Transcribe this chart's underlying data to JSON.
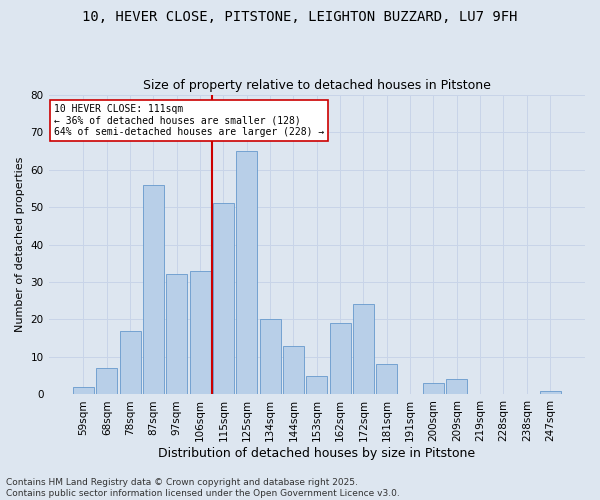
{
  "title1": "10, HEVER CLOSE, PITSTONE, LEIGHTON BUZZARD, LU7 9FH",
  "title2": "Size of property relative to detached houses in Pitstone",
  "xlabel": "Distribution of detached houses by size in Pitstone",
  "ylabel": "Number of detached properties",
  "categories": [
    "59sqm",
    "68sqm",
    "78sqm",
    "87sqm",
    "97sqm",
    "106sqm",
    "115sqm",
    "125sqm",
    "134sqm",
    "144sqm",
    "153sqm",
    "162sqm",
    "172sqm",
    "181sqm",
    "191sqm",
    "200sqm",
    "209sqm",
    "219sqm",
    "228sqm",
    "238sqm",
    "247sqm"
  ],
  "values": [
    2,
    7,
    17,
    56,
    32,
    33,
    51,
    65,
    20,
    13,
    5,
    19,
    24,
    8,
    0,
    3,
    4,
    0,
    0,
    0,
    1
  ],
  "bar_color": "#b8cfe8",
  "bar_edge_color": "#6699cc",
  "vline_color": "#cc0000",
  "annotation_line1": "10 HEVER CLOSE: 111sqm",
  "annotation_line2": "← 36% of detached houses are smaller (128)",
  "annotation_line3": "64% of semi-detached houses are larger (228) →",
  "annotation_box_color": "#ffffff",
  "annotation_box_edge": "#cc0000",
  "ylim": [
    0,
    80
  ],
  "yticks": [
    0,
    10,
    20,
    30,
    40,
    50,
    60,
    70,
    80
  ],
  "grid_color": "#c8d4e8",
  "background_color": "#dde6f0",
  "footer": "Contains HM Land Registry data © Crown copyright and database right 2025.\nContains public sector information licensed under the Open Government Licence v3.0.",
  "title1_fontsize": 10,
  "title2_fontsize": 9,
  "xlabel_fontsize": 9,
  "ylabel_fontsize": 8,
  "tick_fontsize": 7.5,
  "footer_fontsize": 6.5
}
